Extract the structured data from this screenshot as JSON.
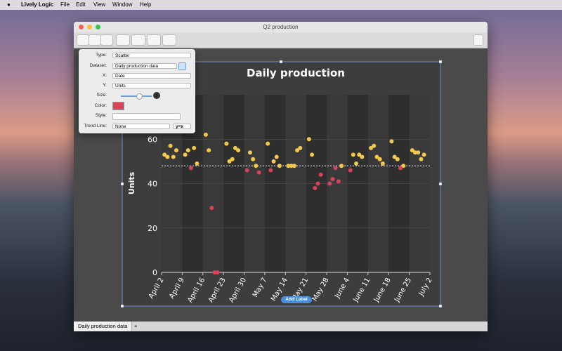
{
  "menu_bar": {
    "app": "Lively Logic",
    "items": [
      "File",
      "Edit",
      "View",
      "Window",
      "Help"
    ]
  },
  "window": {
    "title": "Q2 production"
  },
  "inspector": {
    "fields": [
      {
        "label": "Type:",
        "value": "Scatter"
      },
      {
        "label": "Dataset:",
        "value": "Daily production data"
      },
      {
        "label": "X:",
        "value": "Date"
      },
      {
        "label": "Y:",
        "value": "Units"
      },
      {
        "label": "Size:"
      },
      {
        "label": "Color:"
      },
      {
        "label": "Style:"
      },
      {
        "label": "Trend Line:",
        "value": "None"
      }
    ],
    "trend_formula": "y=x"
  },
  "add_label": "Add Label",
  "tabs": [
    "Daily production data"
  ],
  "chart_data": {
    "type": "scatter",
    "title": "Daily production",
    "y_label": "Units",
    "xlim": [
      "April 2",
      "July 2"
    ],
    "xticks": [
      "April 2",
      "April 9",
      "April 16",
      "April 23",
      "April 30",
      "May 7",
      "May 14",
      "May 21",
      "May 28",
      "June 4",
      "June 11",
      "June 18",
      "June 25",
      "July 2"
    ],
    "ylim": [
      0,
      80
    ],
    "yticks": [
      0,
      20,
      40,
      60
    ],
    "grid": true,
    "reference_line": 48,
    "series": [
      {
        "color": "#f2c94c",
        "x": [
          "April 3",
          "April 4",
          "April 5",
          "April 6",
          "April 7",
          "April 10",
          "April 11",
          "April 13",
          "April 14",
          "April 17",
          "April 18",
          "April 24",
          "April 25",
          "April 26",
          "April 27",
          "April 28",
          "May 2",
          "May 3",
          "May 4",
          "May 8",
          "May 10",
          "May 11",
          "May 12",
          "May 15",
          "May 16",
          "May 17",
          "May 18",
          "May 19",
          "May 22",
          "May 23",
          "June 2",
          "June 6",
          "June 7",
          "June 8",
          "June 9",
          "June 12",
          "June 13",
          "June 14",
          "June 15",
          "June 16",
          "June 19",
          "June 20",
          "June 21",
          "June 23",
          "June 26",
          "June 27",
          "June 28",
          "June 29",
          "June 30"
        ],
        "values": [
          53,
          52,
          57,
          52,
          55,
          53,
          55,
          56,
          49,
          62,
          55,
          58,
          50,
          51,
          56,
          55,
          54,
          51,
          48,
          58,
          50,
          52,
          48,
          48,
          48,
          48,
          55,
          56,
          60,
          53,
          48,
          53,
          49,
          53,
          52,
          56,
          57,
          52,
          51,
          49,
          59,
          52,
          51,
          48,
          55,
          54,
          54,
          51,
          53
        ]
      },
      {
        "color": "#d9435a",
        "x": [
          "April 12",
          "April 19",
          "April 20",
          "April 21",
          "May 1",
          "May 5",
          "May 9",
          "May 24",
          "May 25",
          "May 26",
          "May 29",
          "May 30",
          "May 31",
          "June 1",
          "June 5",
          "June 22"
        ],
        "values": [
          47,
          29,
          0,
          0,
          46,
          45,
          46,
          38,
          40,
          44,
          40,
          42,
          47,
          41,
          46,
          47
        ]
      }
    ]
  }
}
